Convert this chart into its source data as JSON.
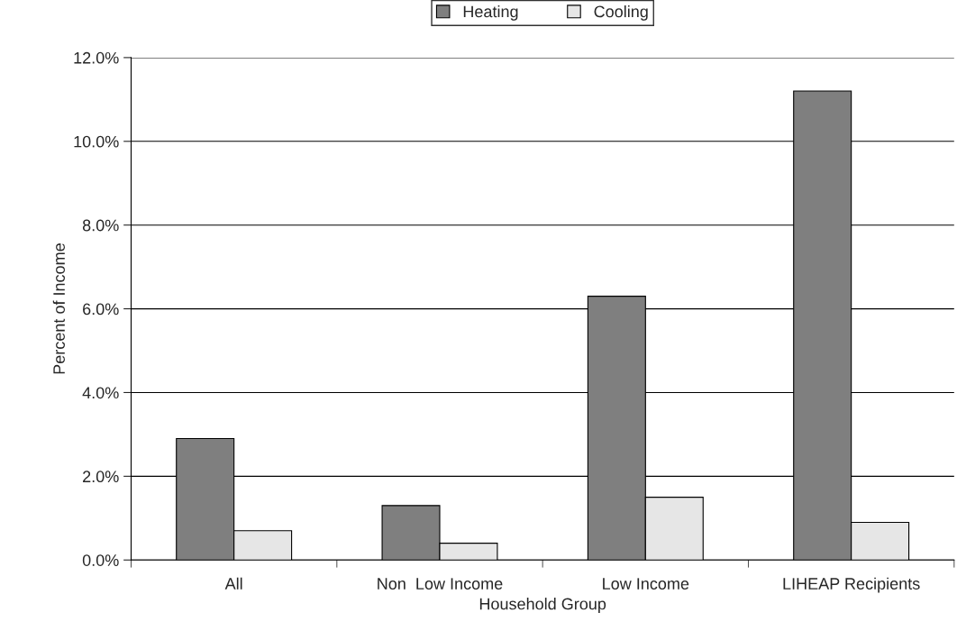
{
  "chart_data": {
    "type": "bar",
    "xlabel": "Household Group",
    "ylabel": "Percent of Income",
    "categories": [
      "All",
      "Non  Low Income",
      "Low Income",
      "LIHEAP Recipients"
    ],
    "series": [
      {
        "name": "Heating",
        "color": "#7f7f7f",
        "values": [
          2.9,
          1.3,
          6.3,
          11.2
        ]
      },
      {
        "name": "Cooling",
        "color": "#e6e6e6",
        "values": [
          0.7,
          0.4,
          1.5,
          0.9
        ]
      }
    ],
    "ylim": [
      0,
      12
    ],
    "yticks": [
      {
        "value": 0,
        "label": "0.0%"
      },
      {
        "value": 2,
        "label": "2.0%"
      },
      {
        "value": 4,
        "label": "4.0%"
      },
      {
        "value": 6,
        "label": "6.0%"
      },
      {
        "value": 8,
        "label": "8.0%"
      },
      {
        "value": 10,
        "label": "10.0%"
      },
      {
        "value": 12,
        "label": "12.0%"
      }
    ],
    "grid": "y",
    "legend": "top"
  }
}
